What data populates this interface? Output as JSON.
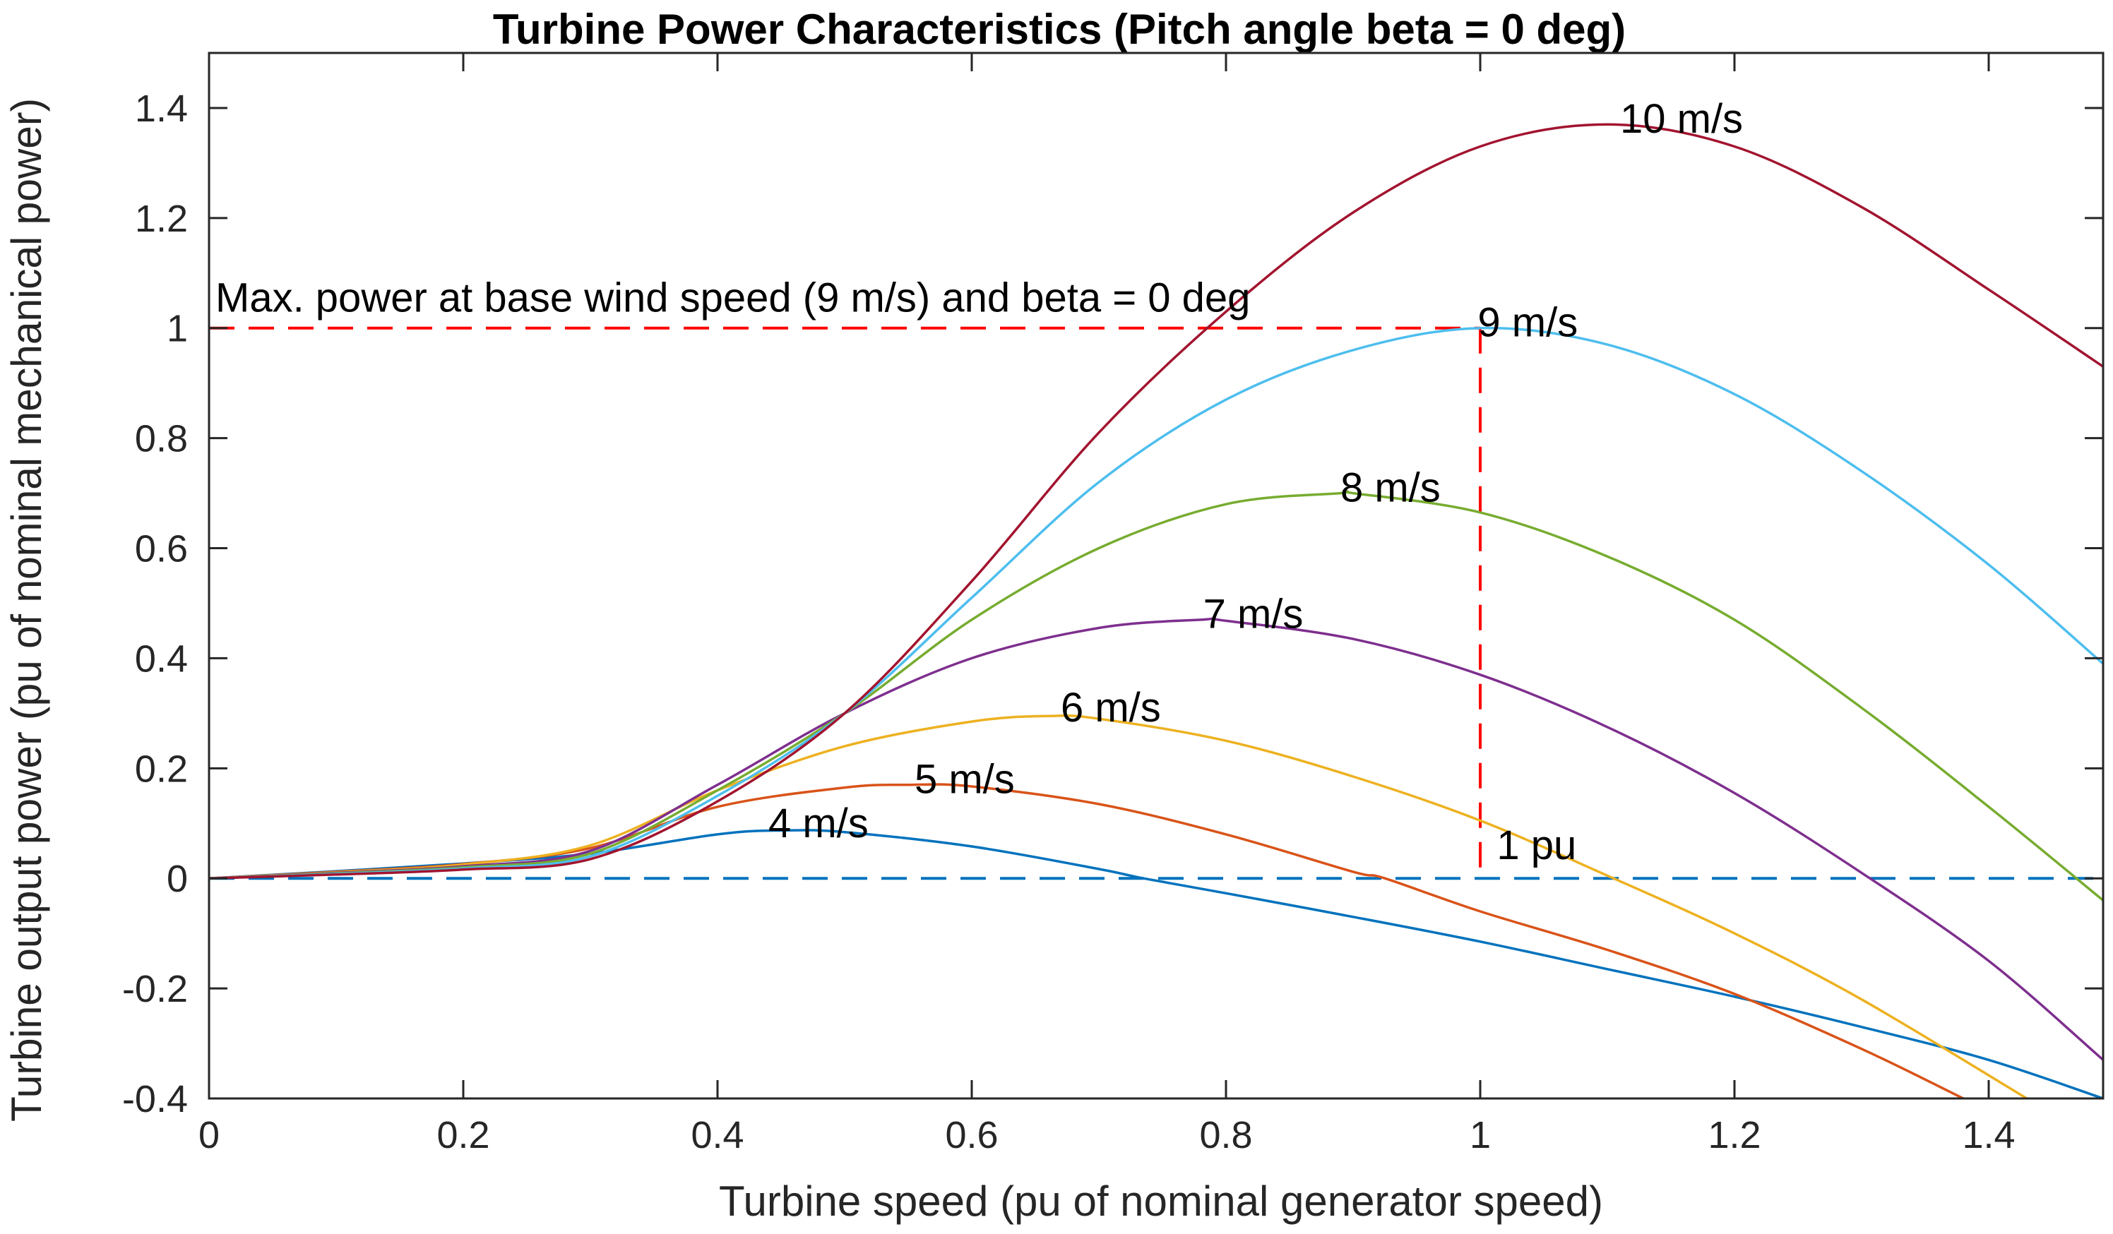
{
  "chart_data": {
    "type": "line",
    "title": "Turbine Power Characteristics (Pitch angle beta = 0 deg)",
    "xlabel": "Turbine speed (pu of nominal generator speed)",
    "ylabel": "Turbine output power (pu of nominal mechanical power)",
    "xlim": [
      0,
      1.49
    ],
    "ylim": [
      -0.4,
      1.5
    ],
    "xticks": [
      0,
      0.2,
      0.4,
      0.6,
      0.8,
      1,
      1.2,
      1.4
    ],
    "xtick_labels": [
      "0",
      "0.2",
      "0.4",
      "0.6",
      "0.8",
      "1",
      "1.2",
      "1.4"
    ],
    "yticks": [
      -0.4,
      -0.2,
      0,
      0.2,
      0.4,
      0.6,
      0.8,
      1,
      1.2,
      1.4
    ],
    "ytick_labels": [
      "-0.4",
      "-0.2",
      "0",
      "0.2",
      "0.4",
      "0.6",
      "0.8",
      "1",
      "1.2",
      "1.4"
    ],
    "grid": false,
    "series": [
      {
        "name": "4 m/s",
        "label": "4 m/s",
        "color": "#0072BD",
        "x": [
          0,
          0.1,
          0.2,
          0.3,
          0.4,
          0.45,
          0.5,
          0.6,
          0.7,
          0.735,
          0.8,
          0.9,
          1.0,
          1.1,
          1.2,
          1.3,
          1.4,
          1.49
        ],
        "y": [
          0,
          0.013,
          0.027,
          0.045,
          0.08,
          0.087,
          0.084,
          0.058,
          0.017,
          0,
          -0.027,
          -0.07,
          -0.115,
          -0.165,
          -0.215,
          -0.27,
          -0.33,
          -0.4
        ]
      },
      {
        "name": "5 m/s",
        "label": "5 m/s",
        "color": "#D95319",
        "x": [
          0,
          0.1,
          0.2,
          0.3,
          0.4,
          0.5,
          0.55,
          0.6,
          0.7,
          0.8,
          0.9,
          0.925,
          1.0,
          1.1,
          1.2,
          1.3,
          1.38
        ],
        "y": [
          0,
          0.012,
          0.026,
          0.055,
          0.13,
          0.165,
          0.17,
          0.167,
          0.135,
          0.08,
          0.012,
          0,
          -0.06,
          -0.13,
          -0.21,
          -0.31,
          -0.4
        ]
      },
      {
        "name": "6 m/s",
        "label": "6 m/s",
        "color": "#EDB120",
        "x": [
          0,
          0.1,
          0.2,
          0.3,
          0.4,
          0.5,
          0.6,
          0.66,
          0.7,
          0.8,
          0.9,
          1.0,
          1.1,
          1.2,
          1.3,
          1.43
        ],
        "y": [
          0,
          0.011,
          0.025,
          0.06,
          0.16,
          0.24,
          0.285,
          0.295,
          0.29,
          0.25,
          0.185,
          0.105,
          0.005,
          -0.1,
          -0.22,
          -0.4
        ]
      },
      {
        "name": "7 m/s",
        "label": "7 m/s",
        "color": "#7E2F8E",
        "x": [
          0,
          0.1,
          0.2,
          0.3,
          0.4,
          0.5,
          0.6,
          0.7,
          0.78,
          0.8,
          0.9,
          1.0,
          1.1,
          1.2,
          1.3,
          1.4,
          1.49
        ],
        "y": [
          0,
          0.01,
          0.022,
          0.05,
          0.17,
          0.3,
          0.4,
          0.455,
          0.47,
          0.468,
          0.435,
          0.37,
          0.275,
          0.155,
          0.01,
          -0.15,
          -0.33
        ]
      },
      {
        "name": "8 m/s",
        "label": "8 m/s",
        "color": "#77AC30",
        "x": [
          0,
          0.1,
          0.2,
          0.3,
          0.4,
          0.5,
          0.6,
          0.7,
          0.8,
          0.89,
          0.9,
          1.0,
          1.1,
          1.2,
          1.3,
          1.4,
          1.49
        ],
        "y": [
          0,
          0.009,
          0.02,
          0.045,
          0.16,
          0.3,
          0.47,
          0.6,
          0.68,
          0.7,
          0.7,
          0.665,
          0.585,
          0.47,
          0.31,
          0.13,
          -0.04
        ]
      },
      {
        "name": "9 m/s",
        "label": "9 m/s",
        "color": "#4DBEEE",
        "x": [
          0,
          0.1,
          0.2,
          0.3,
          0.4,
          0.5,
          0.6,
          0.7,
          0.8,
          0.9,
          1.0,
          1.1,
          1.2,
          1.3,
          1.4,
          1.49
        ],
        "y": [
          0,
          0.008,
          0.018,
          0.04,
          0.15,
          0.3,
          0.51,
          0.72,
          0.87,
          0.96,
          1.0,
          0.97,
          0.88,
          0.74,
          0.57,
          0.39
        ]
      },
      {
        "name": "10 m/s",
        "label": "10 m/s",
        "color": "#A2142F",
        "x": [
          0,
          0.1,
          0.2,
          0.3,
          0.4,
          0.5,
          0.6,
          0.7,
          0.8,
          0.9,
          1.0,
          1.1,
          1.2,
          1.3,
          1.4,
          1.49
        ],
        "y": [
          0,
          0.007,
          0.016,
          0.035,
          0.14,
          0.3,
          0.54,
          0.81,
          1.03,
          1.21,
          1.33,
          1.37,
          1.33,
          1.22,
          1.07,
          0.93
        ]
      }
    ],
    "reference_lines": [
      {
        "name": "max-power-line",
        "color": "#FF0000",
        "style": "dashed",
        "x": [
          0,
          1
        ],
        "y": [
          1,
          1
        ]
      },
      {
        "name": "one-pu-line",
        "color": "#FF0000",
        "style": "dashed",
        "x": [
          1,
          1
        ],
        "y": [
          1,
          0
        ]
      },
      {
        "name": "zero-line",
        "color": "#0072BD",
        "style": "dashed",
        "x": [
          0,
          1.49
        ],
        "y": [
          0,
          0
        ]
      }
    ],
    "annotations": [
      {
        "name": "annotation-max-power",
        "text": "Max. power at base wind speed (9 m/s) and beta = 0 deg",
        "x": 0.005,
        "y": 1.03
      },
      {
        "name": "annotation-1pu",
        "text": "1 pu",
        "x": 1.013,
        "y": 0.035
      },
      {
        "name": "label-4ms",
        "text": "4 m/s",
        "x": 0.44,
        "y": 0.075
      },
      {
        "name": "label-5ms",
        "text": "5 m/s",
        "x": 0.555,
        "y": 0.155
      },
      {
        "name": "label-6ms",
        "text": "6 m/s",
        "x": 0.67,
        "y": 0.285
      },
      {
        "name": "label-7ms",
        "text": "7 m/s",
        "x": 0.782,
        "y": 0.455
      },
      {
        "name": "label-8ms",
        "text": "8 m/s",
        "x": 0.89,
        "y": 0.685
      },
      {
        "name": "label-9ms",
        "text": "9 m/s",
        "x": 0.998,
        "y": 0.985
      },
      {
        "name": "label-10ms",
        "text": "10 m/s",
        "x": 1.11,
        "y": 1.355
      }
    ]
  }
}
